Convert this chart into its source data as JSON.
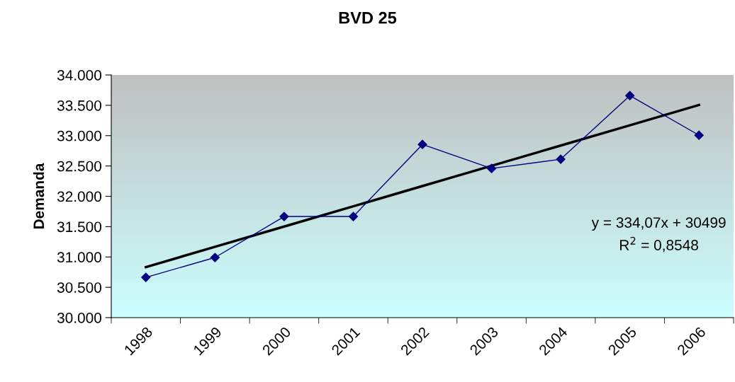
{
  "chart_data": {
    "type": "line",
    "title": "BVD 25",
    "ylabel": "Demanda",
    "categories": [
      "1998",
      "1999",
      "2000",
      "2001",
      "2002",
      "2003",
      "2004",
      "2005",
      "2006"
    ],
    "series": [
      {
        "color": "#000080",
        "marker": "diamond",
        "values": [
          30664,
          30991,
          31667,
          31667,
          32855,
          32459,
          32611,
          33660,
          33007
        ]
      },
      {
        "color": "#000000",
        "marker": "none",
        "values": [
          30833,
          31167,
          31501,
          31835,
          32169,
          32503,
          32837,
          33171,
          33506
        ]
      }
    ],
    "ylim": [
      30000,
      34000
    ],
    "yticks": [
      {
        "value": 30000,
        "label": "30.000"
      },
      {
        "value": 30500,
        "label": "30.500"
      },
      {
        "value": 31000,
        "label": "31.000"
      },
      {
        "value": 31500,
        "label": "31.500"
      },
      {
        "value": 32000,
        "label": "32.000"
      },
      {
        "value": 32500,
        "label": "32.500"
      },
      {
        "value": 33000,
        "label": "33.000"
      },
      {
        "value": 33500,
        "label": "33.500"
      },
      {
        "value": 34000,
        "label": "34.000"
      }
    ],
    "annotations": [
      "y = 334,07x + 30499\nR$^{2}$ = 0,8548"
    ],
    "grid": false,
    "legend": false
  }
}
